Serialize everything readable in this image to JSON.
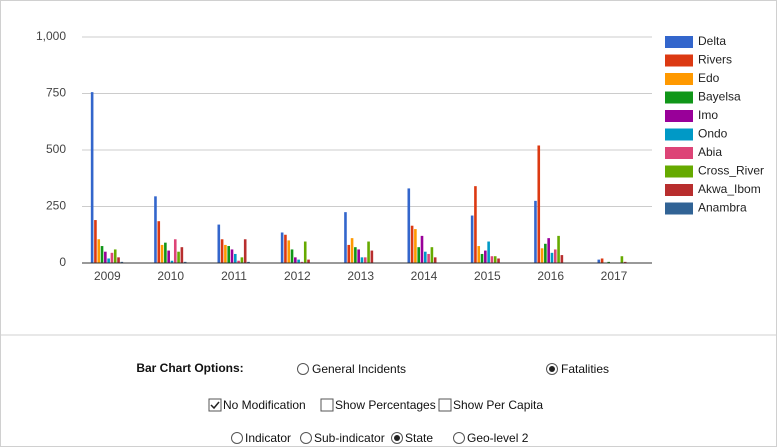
{
  "chart_data": {
    "type": "bar",
    "categories": [
      "2009",
      "2010",
      "2011",
      "2012",
      "2013",
      "2014",
      "2015",
      "2016",
      "2017"
    ],
    "series": [
      {
        "name": "Delta",
        "color": "#3366cc",
        "values": [
          756,
          295,
          170,
          135,
          225,
          330,
          210,
          275,
          15
        ]
      },
      {
        "name": "Rivers",
        "color": "#dc3912",
        "values": [
          190,
          185,
          105,
          125,
          80,
          165,
          340,
          520,
          20
        ]
      },
      {
        "name": "Edo",
        "color": "#ff9900",
        "values": [
          105,
          80,
          80,
          100,
          110,
          150,
          75,
          65,
          2
        ]
      },
      {
        "name": "Bayelsa",
        "color": "#109618",
        "values": [
          75,
          90,
          75,
          60,
          70,
          70,
          40,
          85,
          5
        ]
      },
      {
        "name": "Imo",
        "color": "#990099",
        "values": [
          50,
          55,
          60,
          25,
          60,
          120,
          55,
          110,
          2
        ]
      },
      {
        "name": "Ondo",
        "color": "#0099c6",
        "values": [
          20,
          10,
          40,
          15,
          25,
          50,
          95,
          45,
          0
        ]
      },
      {
        "name": "Abia",
        "color": "#dd4477",
        "values": [
          45,
          105,
          10,
          5,
          25,
          40,
          30,
          60,
          2
        ]
      },
      {
        "name": "Cross_River",
        "color": "#66aa00",
        "values": [
          60,
          50,
          25,
          95,
          95,
          70,
          30,
          120,
          30
        ]
      },
      {
        "name": "Akwa_Ibom",
        "color": "#b82e2e",
        "values": [
          25,
          70,
          105,
          15,
          55,
          25,
          20,
          35,
          5
        ]
      },
      {
        "name": "Anambra",
        "color": "#316395",
        "values": [
          5,
          5,
          5,
          2,
          2,
          2,
          2,
          2,
          0
        ]
      }
    ],
    "ylim": [
      0,
      1000
    ],
    "yticks": [
      0,
      250,
      500,
      750,
      {
        "value": 1000,
        "label": "1,000"
      }
    ],
    "grid": true,
    "legend": "right"
  },
  "ui": {
    "options_label": "Bar Chart Options:",
    "chart_options": [
      {
        "label": "General Incidents",
        "selected": false
      },
      {
        "label": "Fatalities",
        "selected": true
      }
    ],
    "modifications": [
      {
        "label": "No Modification",
        "checked": true
      },
      {
        "label": "Show Percentages",
        "checked": false
      },
      {
        "label": "Show Per Capita",
        "checked": false
      }
    ],
    "levels": [
      {
        "label": "Indicator",
        "selected": false
      },
      {
        "label": "Sub-indicator",
        "selected": false
      },
      {
        "label": "State",
        "selected": true
      },
      {
        "label": "Geo-level 2",
        "selected": false
      }
    ]
  }
}
